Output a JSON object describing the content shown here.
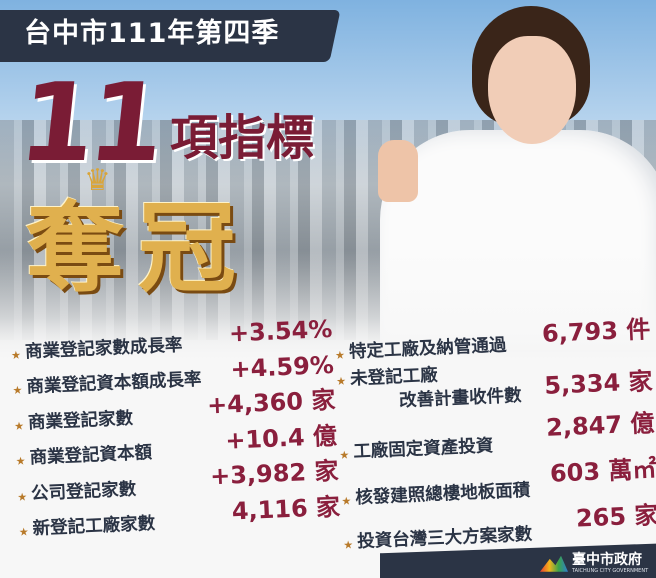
{
  "title": "台中市111年第四季",
  "headline_number": "11",
  "headline_suffix": "項指標",
  "headline_main": "奪冠",
  "icons": {
    "bullet": "star-icon",
    "crown": "crown-icon"
  },
  "colors": {
    "value": "#8a1f3d",
    "headline": "#7a1c35",
    "gold": "#e0b04e",
    "banner": "#2b3445"
  },
  "left_items": [
    {
      "label": "商業登記家數成長率",
      "value": "+3.54%"
    },
    {
      "label": "商業登記資本額成長率",
      "value": "+4.59%"
    },
    {
      "label": "商業登記家數",
      "value": "+4,360 家"
    },
    {
      "label": "商業登記資本額",
      "value": "+10.4 億"
    },
    {
      "label": "公司登記家數",
      "value": "+3,982 家"
    },
    {
      "label": "新登記工廠家數",
      "value": "4,116 家"
    }
  ],
  "right_items": [
    {
      "label": "特定工廠及納管通過",
      "value": "6,793 件"
    },
    {
      "label": "未登記工廠",
      "sublabel": "改善計畫收件數",
      "value": "5,334 家"
    },
    {
      "label": "工廠固定資產投資",
      "value": "2,847 億"
    },
    {
      "label": "核發建照總樓地板面積",
      "value": "603 萬㎡"
    },
    {
      "label": "投資台灣三大方案家數",
      "value": "265 家"
    }
  ],
  "logo": {
    "zh": "臺中市政府",
    "en": "TAICHUNG CITY GOVERNMENT"
  }
}
